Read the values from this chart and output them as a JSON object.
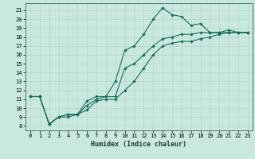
{
  "title": "",
  "xlabel": "Humidex (Indice chaleur)",
  "bg_color": "#c8e8e0",
  "grid_color": "#aad4cc",
  "line_color": "#1a6b5a",
  "xlim": [
    -0.5,
    23.5
  ],
  "ylim": [
    7.5,
    21.8
  ],
  "yticks": [
    8,
    9,
    10,
    11,
    12,
    13,
    14,
    15,
    16,
    17,
    18,
    19,
    20,
    21
  ],
  "xticks": [
    0,
    1,
    2,
    3,
    4,
    5,
    6,
    7,
    8,
    9,
    10,
    11,
    12,
    13,
    14,
    15,
    16,
    17,
    18,
    19,
    20,
    21,
    22,
    23
  ],
  "lines": [
    {
      "x": [
        0,
        1,
        2,
        3,
        4,
        5,
        6,
        7,
        8,
        9,
        10,
        11,
        12,
        13,
        14,
        15,
        16,
        17,
        18,
        19,
        20,
        21,
        22,
        23
      ],
      "y": [
        11.3,
        11.3,
        8.2,
        9.0,
        9.3,
        9.3,
        10.8,
        11.3,
        11.3,
        13.0,
        16.5,
        17.0,
        18.3,
        20.0,
        21.3,
        20.5,
        20.3,
        19.3,
        19.5,
        18.5,
        18.5,
        18.8,
        18.5,
        18.5
      ]
    },
    {
      "x": [
        0,
        1,
        2,
        3,
        4,
        5,
        6,
        7,
        8,
        9,
        10,
        11,
        12,
        13,
        14,
        15,
        16,
        17,
        18,
        19,
        20,
        21,
        22,
        23
      ],
      "y": [
        11.3,
        11.3,
        8.2,
        9.0,
        9.3,
        9.3,
        10.3,
        11.0,
        11.3,
        11.3,
        14.5,
        15.0,
        16.0,
        17.0,
        17.8,
        18.0,
        18.3,
        18.3,
        18.5,
        18.5,
        18.5,
        18.5,
        18.5,
        18.5
      ]
    },
    {
      "x": [
        0,
        1,
        2,
        3,
        4,
        5,
        6,
        7,
        8,
        9,
        10,
        11,
        12,
        13,
        14,
        15,
        16,
        17,
        18,
        19,
        20,
        21,
        22,
        23
      ],
      "y": [
        11.3,
        11.3,
        8.2,
        9.0,
        9.0,
        9.3,
        9.8,
        10.8,
        11.0,
        11.0,
        12.0,
        13.0,
        14.5,
        16.0,
        17.0,
        17.3,
        17.5,
        17.5,
        17.8,
        18.0,
        18.3,
        18.5,
        18.5,
        18.5
      ]
    }
  ]
}
